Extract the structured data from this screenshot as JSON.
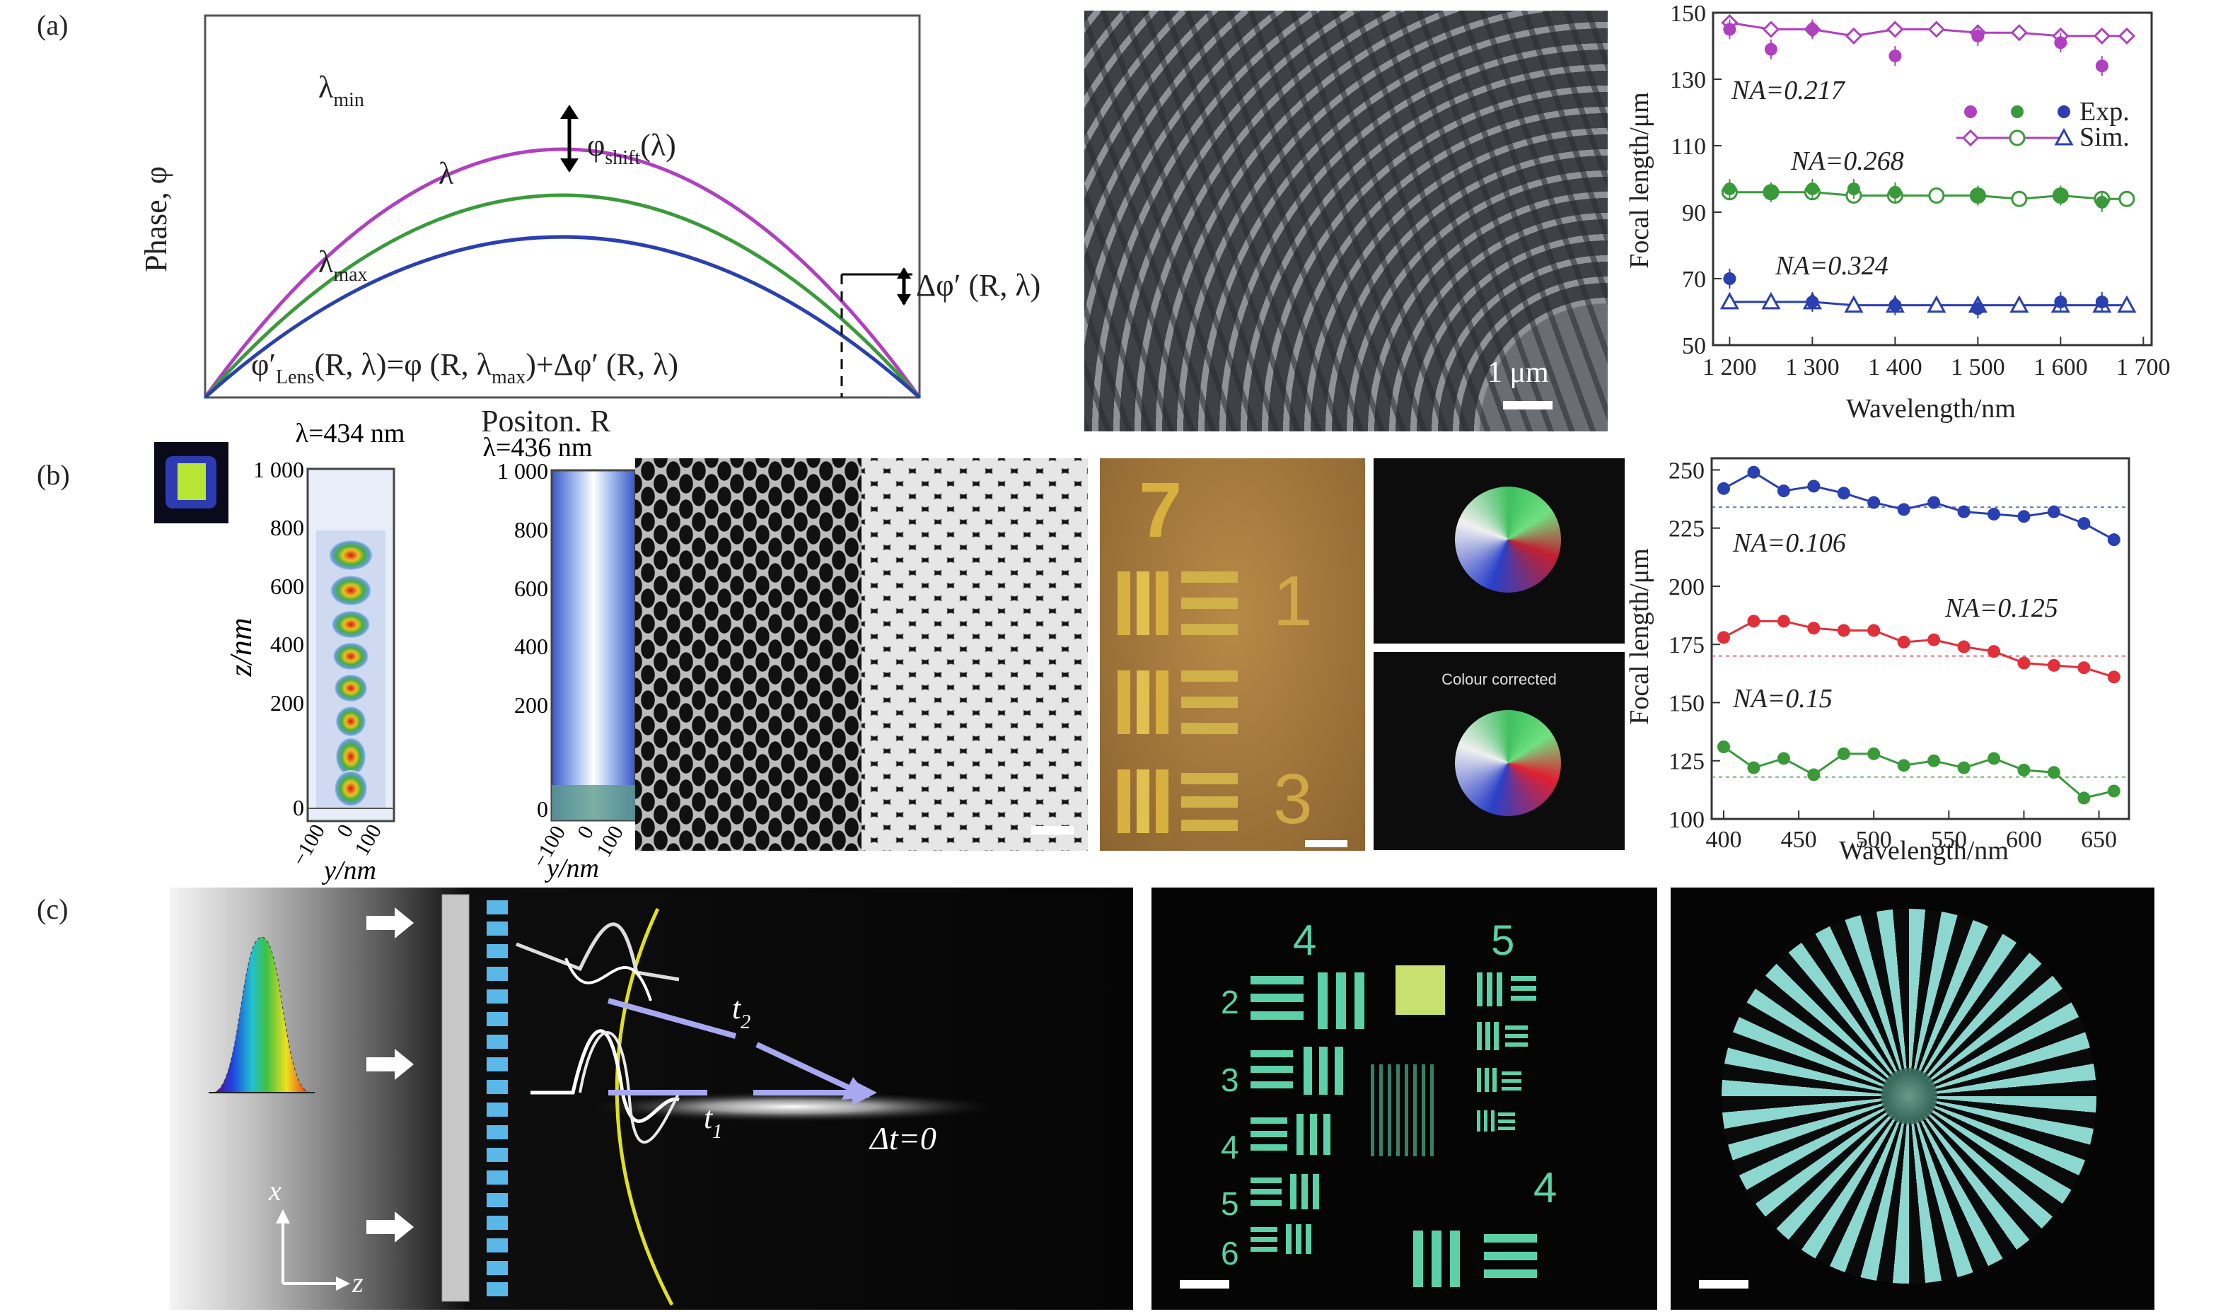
{
  "panels": {
    "a": "(a)",
    "b": "(b)",
    "c": "(c)"
  },
  "colors": {
    "purple": "#b040c0",
    "green": "#3a9a3a",
    "blue": "#2a3fb0",
    "red": "#e0303a"
  },
  "phase_plot": {
    "ylabel": "Phase, φ",
    "xlabel": "Positon, R",
    "curve_labels": {
      "min": "λ",
      "min_sub": "min",
      "mid": "λ",
      "max": "λ",
      "max_sub": "max"
    },
    "shift_label": "φ",
    "shift_sub": "shift",
    "shift_arg": "(λ)",
    "delta_label": "Δφ′ (R, λ)",
    "eq_left": "φ′",
    "eq_sub": "Lens",
    "eq_right": "(R, λ)=φ (R, λ",
    "eq_sub2": "max",
    "eq_end": ")+Δφ′ (R, λ)"
  },
  "sem_a": {
    "scalebar": "1 μm"
  },
  "chart_a": {
    "type": "scatter",
    "ylabel": "Focal length/μm",
    "xlabel": "Wavelength/nm",
    "ylim": [
      50,
      150
    ],
    "yticks": [
      "50",
      "70",
      "90",
      "110",
      "130",
      "150"
    ],
    "xtick_labels": [
      "1 200",
      "1 300",
      "1 400",
      "1 500",
      "1 600",
      "1 700"
    ],
    "legend": {
      "exp": "Exp.",
      "sim": "Sim."
    },
    "annotations": [
      "NA=0.217",
      "NA=0.268",
      "NA=0.324"
    ],
    "series": [
      {
        "name": "NA=0.217",
        "color": "#b040c0",
        "x": [
          1200,
          1250,
          1300,
          1350,
          1400,
          1450,
          1500,
          1550,
          1600,
          1650,
          1680
        ],
        "sim": [
          147,
          145,
          145,
          143,
          145,
          145,
          144,
          144,
          143,
          143,
          143
        ],
        "exp": [
          145,
          139,
          145,
          null,
          137,
          null,
          143,
          null,
          141,
          134,
          null
        ]
      },
      {
        "name": "NA=0.268",
        "color": "#3a9a3a",
        "x": [
          1200,
          1250,
          1300,
          1350,
          1400,
          1450,
          1500,
          1550,
          1600,
          1650,
          1680
        ],
        "sim": [
          96,
          96,
          96,
          95,
          95,
          95,
          95,
          94,
          95,
          94,
          94
        ],
        "exp": [
          97,
          96,
          97,
          97,
          96,
          null,
          95,
          null,
          95,
          93,
          null
        ]
      },
      {
        "name": "NA=0.324",
        "color": "#2a3fb0",
        "x": [
          1200,
          1250,
          1300,
          1350,
          1400,
          1450,
          1500,
          1550,
          1600,
          1650,
          1680
        ],
        "sim": [
          63,
          63,
          63,
          62,
          62,
          62,
          62,
          62,
          62,
          62,
          62
        ],
        "exp": [
          70,
          null,
          63,
          null,
          62,
          null,
          61,
          null,
          63,
          63,
          null
        ]
      }
    ]
  },
  "field_b1": {
    "title": "λ=434 nm",
    "ylabel": "z/nm",
    "xlabel": "y/nm",
    "yticks": [
      "0",
      "200",
      "400",
      "600",
      "800",
      "1 000"
    ],
    "xticks": [
      "−100",
      "0",
      "100"
    ]
  },
  "field_b2": {
    "title": "λ=436 nm",
    "yticks": [
      "0",
      "200",
      "400",
      "600",
      "800",
      "1 000"
    ],
    "xticks": [
      "−100",
      "0",
      "100"
    ],
    "xlabel": "y/nm"
  },
  "optical_b": {
    "digits": [
      "7",
      "1",
      "3"
    ],
    "colour_label": "Colour corrected"
  },
  "chart_b": {
    "type": "line",
    "ylabel": "Focal length/μm",
    "xlabel": "Wavelength/nm",
    "ylim": [
      100,
      255
    ],
    "yticks": [
      "100",
      "125",
      "150",
      "175",
      "200",
      "225",
      "250"
    ],
    "xticks": [
      "400",
      "450",
      "500",
      "550",
      "600",
      "650"
    ],
    "annotations": [
      "NA=0.106",
      "NA=0.125",
      "NA=0.15"
    ],
    "x": [
      400,
      420,
      440,
      460,
      480,
      500,
      520,
      540,
      560,
      580,
      600,
      620,
      640,
      660
    ],
    "series": [
      {
        "name": "NA=0.106",
        "color": "#2a3fb0",
        "ref": 234,
        "values": [
          242,
          249,
          241,
          243,
          240,
          236,
          233,
          236,
          232,
          231,
          230,
          232,
          227,
          220
        ]
      },
      {
        "name": "NA=0.125",
        "color": "#e0303a",
        "ref": 170,
        "values": [
          178,
          185,
          185,
          182,
          181,
          181,
          176,
          177,
          174,
          172,
          167,
          166,
          165,
          161
        ]
      },
      {
        "name": "NA=0.15",
        "color": "#3a9a3a",
        "ref": 118,
        "values": [
          131,
          122,
          126,
          119,
          128,
          128,
          123,
          125,
          122,
          126,
          121,
          120,
          109,
          112
        ]
      }
    ]
  },
  "diagram_c": {
    "t2": "t",
    "t2_sub": "2",
    "t1": "t",
    "t1_sub": "1",
    "dt": "Δt=0",
    "ax_x": "x",
    "ax_z": "z"
  },
  "usaf_c": {
    "digits": [
      "4",
      "5",
      "2",
      "3",
      "4",
      "5",
      "6",
      "4"
    ]
  }
}
